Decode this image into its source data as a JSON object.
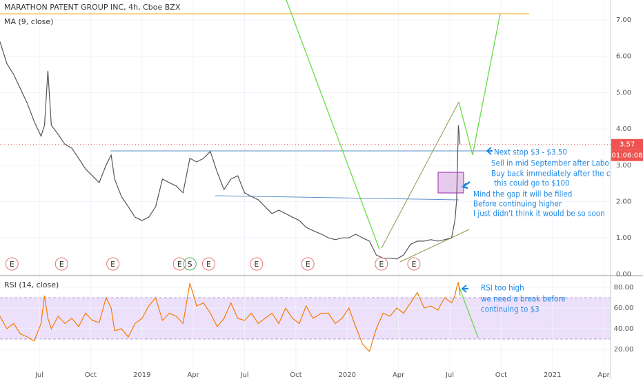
{
  "chart_data": [
    {
      "type": "line",
      "title": "MARATHON PATENT GROUP INC, 4h, Cboe BZX",
      "subtitle": "MA (9, close)",
      "color": "#555555",
      "x": [
        3.7,
        4.1,
        4.5,
        4.9,
        5.3,
        5.7,
        6.1,
        6.3,
        6.5,
        6.7,
        7.1,
        7.5,
        7.9,
        8.3,
        8.7,
        9.1,
        9.5,
        9.9,
        10.2,
        10.4,
        10.8,
        11.2,
        11.6,
        12.0,
        12.4,
        12.8,
        13.2,
        13.6,
        14.0,
        14.4,
        14.8,
        15.2,
        15.6,
        16.0,
        16.4,
        16.8,
        17.2,
        17.6,
        18.0,
        18.4,
        18.8,
        19.2,
        19.6,
        20.0,
        20.4,
        20.8,
        21.2,
        21.6,
        22.0,
        22.5,
        22.9,
        23.3,
        23.7,
        24.1,
        24.5,
        24.9,
        25.3,
        25.7,
        26.1,
        26.5,
        26.9,
        27.3,
        27.7,
        28.1,
        28.5,
        28.9,
        29.3,
        29.7,
        30.1,
        30.3,
        30.4,
        30.5,
        30.6
      ],
      "values": [
        6.4,
        5.8,
        5.5,
        5.1,
        4.7,
        4.2,
        3.8,
        4.1,
        5.6,
        4.1,
        3.85,
        3.57,
        3.47,
        3.19,
        2.9,
        2.71,
        2.52,
        3.0,
        3.28,
        2.62,
        2.14,
        1.86,
        1.57,
        1.48,
        1.57,
        1.86,
        2.62,
        2.52,
        2.43,
        2.24,
        3.19,
        3.09,
        3.19,
        3.38,
        2.81,
        2.33,
        2.62,
        2.71,
        2.24,
        2.14,
        2.05,
        1.86,
        1.67,
        1.76,
        1.67,
        1.57,
        1.48,
        1.29,
        1.2,
        1.1,
        1.0,
        0.95,
        1.0,
        1.0,
        1.1,
        1.0,
        0.91,
        0.53,
        0.44,
        0.44,
        0.42,
        0.53,
        0.82,
        0.91,
        0.91,
        0.95,
        0.91,
        0.95,
        1.0,
        1.48,
        2.05,
        4.1,
        3.57
      ],
      "xlim": [
        3.7,
        39.4
      ],
      "ylim": [
        -0.04,
        7.55
      ],
      "yticks": [
        {
          "value": 0,
          "label": "0.00"
        },
        {
          "value": 1,
          "label": "1.00"
        },
        {
          "value": 2,
          "label": "2.00"
        },
        {
          "value": 3,
          "label": "3.00"
        },
        {
          "value": 4,
          "label": "4.00"
        },
        {
          "value": 5,
          "label": "5.00"
        },
        {
          "value": 6,
          "label": "6.00"
        },
        {
          "value": 7,
          "label": "7.00"
        }
      ],
      "last_price": 3.57,
      "countdown": "01:06:08",
      "events": [
        {
          "x": 4.4,
          "label": "E"
        },
        {
          "x": 7.3,
          "label": "E"
        },
        {
          "x": 10.3,
          "label": "E"
        },
        {
          "x": 14.2,
          "label": "E"
        },
        {
          "x": 14.8,
          "label": "S"
        },
        {
          "x": 15.9,
          "label": "E"
        },
        {
          "x": 18.7,
          "label": "E"
        },
        {
          "x": 21.7,
          "label": "E"
        },
        {
          "x": 26.0,
          "label": "E"
        },
        {
          "x": 27.9,
          "label": "E"
        }
      ],
      "annotations": [
        "Next stop $3 - $3.50",
        "Sell in mid September after Labo",
        "Buy back immediately after the c",
        "this could go to $100",
        "Mind the gap it will be filled",
        "Before continuing higher",
        "I just didn't think it would be so soon"
      ]
    },
    {
      "type": "line",
      "title": "RSI (14, close)",
      "color": "#f57c00",
      "x": [
        3.7,
        4.1,
        4.5,
        4.9,
        5.3,
        5.7,
        6.1,
        6.3,
        6.5,
        6.7,
        7.1,
        7.5,
        7.9,
        8.3,
        8.7,
        9.1,
        9.5,
        9.9,
        10.2,
        10.4,
        10.8,
        11.2,
        11.6,
        12.0,
        12.4,
        12.8,
        13.2,
        13.6,
        14.0,
        14.4,
        14.8,
        15.2,
        15.6,
        16.0,
        16.4,
        16.8,
        17.2,
        17.6,
        18.0,
        18.4,
        18.8,
        19.2,
        19.6,
        20.0,
        20.4,
        20.8,
        21.2,
        21.6,
        22.0,
        22.5,
        22.9,
        23.3,
        23.7,
        24.1,
        24.5,
        24.9,
        25.3,
        25.7,
        26.1,
        26.5,
        26.9,
        27.3,
        27.7,
        28.1,
        28.5,
        28.9,
        29.3,
        29.7,
        30.1,
        30.3,
        30.4,
        30.5,
        30.6
      ],
      "values": [
        52,
        40,
        45,
        35,
        32,
        28,
        45,
        72,
        50,
        40,
        52,
        45,
        50,
        42,
        55,
        48,
        46,
        70,
        60,
        38,
        40,
        32,
        45,
        50,
        62,
        70,
        48,
        55,
        52,
        45,
        84,
        62,
        65,
        55,
        42,
        50,
        65,
        50,
        48,
        55,
        45,
        50,
        55,
        45,
        60,
        50,
        45,
        62,
        50,
        55,
        55,
        45,
        50,
        60,
        42,
        25,
        18,
        40,
        55,
        52,
        60,
        55,
        65,
        75,
        60,
        62,
        58,
        70,
        65,
        72,
        80,
        85,
        72
      ],
      "band": [
        30,
        70
      ],
      "xlim": [
        3.7,
        39.4
      ],
      "ylim": [
        -2,
        91.3
      ],
      "yticks": [
        {
          "value": 20,
          "label": "20.00"
        },
        {
          "value": 40,
          "label": "40.00"
        },
        {
          "value": 60,
          "label": "60.00"
        },
        {
          "value": 80,
          "label": "80.00"
        }
      ],
      "xticks": [
        {
          "value": 6,
          "label": "Jul"
        },
        {
          "value": 9,
          "label": "Oct"
        },
        {
          "value": 12,
          "label": "2019"
        },
        {
          "value": 15,
          "label": "Apr"
        },
        {
          "value": 18,
          "label": "Jul"
        },
        {
          "value": 21,
          "label": "Oct"
        },
        {
          "value": 24,
          "label": "2020"
        },
        {
          "value": 27,
          "label": "Apr"
        },
        {
          "value": 30,
          "label": "Jul"
        },
        {
          "value": 33,
          "label": "Oct"
        },
        {
          "value": 36,
          "label": "2021"
        },
        {
          "value": 39,
          "label": "Apr"
        }
      ],
      "annotations": [
        "RSI too high",
        "we need a break before",
        "continuing to $3"
      ]
    }
  ]
}
